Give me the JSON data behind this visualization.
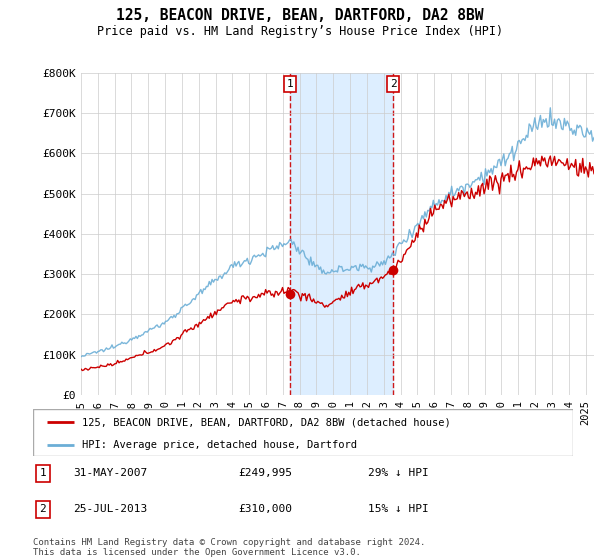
{
  "title": "125, BEACON DRIVE, BEAN, DARTFORD, DA2 8BW",
  "subtitle": "Price paid vs. HM Land Registry’s House Price Index (HPI)",
  "ylim": [
    0,
    800000
  ],
  "yticks": [
    0,
    100000,
    200000,
    300000,
    400000,
    500000,
    600000,
    700000,
    800000
  ],
  "ytick_labels": [
    "£0",
    "£100K",
    "£200K",
    "£300K",
    "£400K",
    "£500K",
    "£600K",
    "£700K",
    "£800K"
  ],
  "sale1_date": 2007.42,
  "sale1_price": 249995,
  "sale2_date": 2013.56,
  "sale2_price": 310000,
  "hpi_color": "#6baed6",
  "property_color": "#cc0000",
  "dashed_color": "#cc0000",
  "shade_color": "#ddeeff",
  "legend_property": "125, BEACON DRIVE, BEAN, DARTFORD, DA2 8BW (detached house)",
  "legend_hpi": "HPI: Average price, detached house, Dartford",
  "footer": "Contains HM Land Registry data © Crown copyright and database right 2024.\nThis data is licensed under the Open Government Licence v3.0.",
  "background_color": "#ffffff",
  "grid_color": "#cccccc",
  "xlim_start": 1995,
  "xlim_end": 2025.5
}
